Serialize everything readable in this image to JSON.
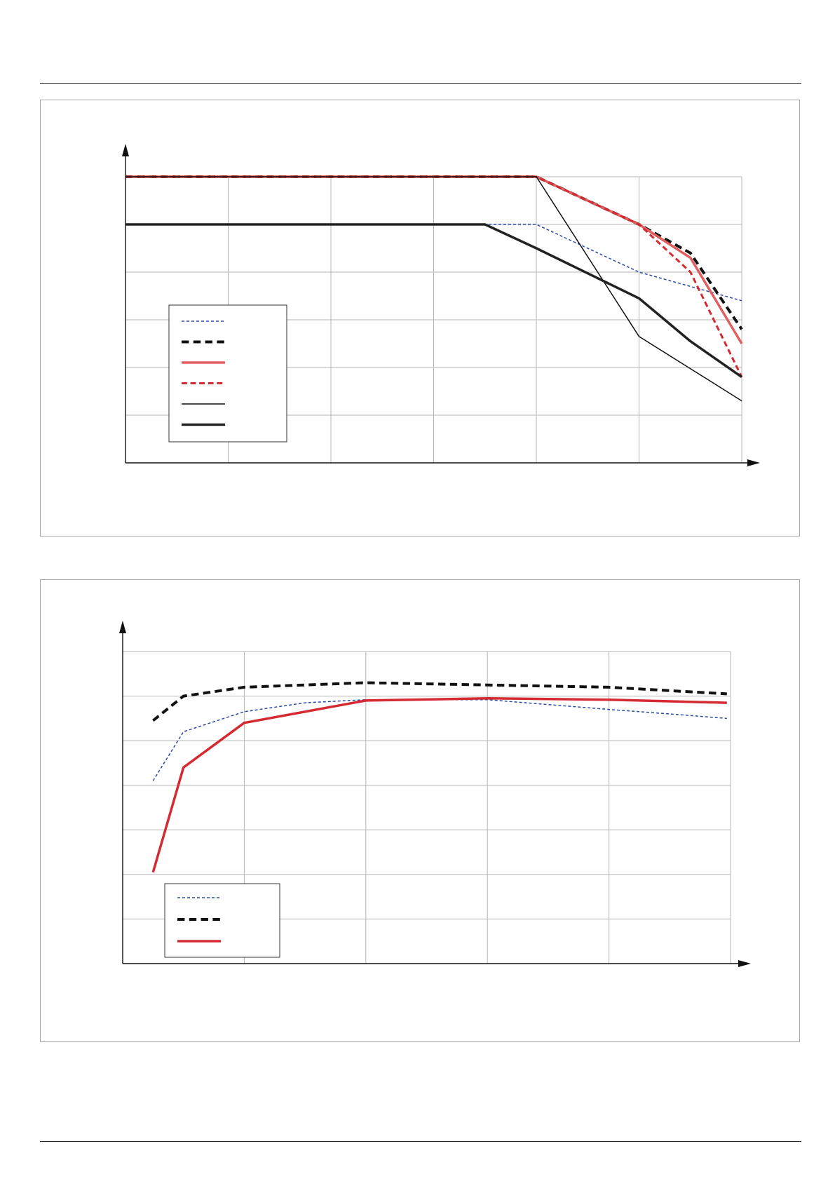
{
  "chart_data": [
    {
      "type": "line",
      "xlim": [
        0,
        6
      ],
      "ylim": [
        0,
        6
      ],
      "grid": true,
      "legend": "lower-left",
      "x": [
        0,
        1,
        2,
        3,
        3.5,
        4,
        5,
        5.5,
        6
      ],
      "series": [
        {
          "style": "dotted",
          "color": "#2b4aa8",
          "width": 1.5,
          "points": [
            [
              0,
              5
            ],
            [
              3.5,
              5
            ],
            [
              4,
              5
            ],
            [
              5,
              4
            ],
            [
              5.5,
              3.7
            ],
            [
              6,
              3.4
            ]
          ]
        },
        {
          "style": "dashed",
          "color": "#111111",
          "width": 4,
          "points": [
            [
              0,
              6
            ],
            [
              4,
              6
            ],
            [
              5,
              5
            ],
            [
              5.5,
              4.4
            ],
            [
              6,
              2.8
            ]
          ]
        },
        {
          "style": "solid",
          "color": "#e06060",
          "width": 3.5,
          "points": [
            [
              0,
              6
            ],
            [
              4,
              6
            ],
            [
              5,
              5
            ],
            [
              5.5,
              4.3
            ],
            [
              6,
              2.5
            ]
          ]
        },
        {
          "style": "dashed",
          "color": "#d42a32",
          "width": 3,
          "points": [
            [
              0,
              6
            ],
            [
              4,
              6
            ],
            [
              5,
              5
            ],
            [
              5.5,
              4
            ],
            [
              6,
              1.8
            ]
          ]
        },
        {
          "style": "solid",
          "color": "#111111",
          "width": 1.5,
          "points": [
            [
              0,
              6
            ],
            [
              4,
              6
            ],
            [
              5,
              2.65
            ],
            [
              6,
              1.3
            ]
          ]
        },
        {
          "style": "solid",
          "color": "#222222",
          "width": 3.5,
          "points": [
            [
              0,
              5
            ],
            [
              3.5,
              5
            ],
            [
              4,
              4.5
            ],
            [
              5,
              3.45
            ],
            [
              5.5,
              2.55
            ],
            [
              6,
              1.8
            ]
          ]
        }
      ]
    },
    {
      "type": "line",
      "xlim": [
        0,
        5
      ],
      "ylim": [
        0,
        7
      ],
      "grid": true,
      "legend": "lower-left",
      "series": [
        {
          "style": "dotted",
          "color": "#2b4aa8",
          "width": 1.5,
          "points": [
            [
              0.25,
              4.1
            ],
            [
              0.5,
              5.2
            ],
            [
              1,
              5.65
            ],
            [
              1.5,
              5.85
            ],
            [
              2,
              5.92
            ],
            [
              3,
              5.92
            ],
            [
              4,
              5.7
            ],
            [
              4.5,
              5.6
            ],
            [
              4.97,
              5.5
            ]
          ]
        },
        {
          "style": "dashed",
          "color": "#111111",
          "width": 4,
          "points": [
            [
              0.25,
              5.45
            ],
            [
              0.5,
              6.0
            ],
            [
              1,
              6.2
            ],
            [
              2,
              6.3
            ],
            [
              3,
              6.25
            ],
            [
              4,
              6.2
            ],
            [
              4.97,
              6.05
            ]
          ]
        },
        {
          "style": "solid",
          "color": "#d42a32",
          "width": 3.5,
          "points": [
            [
              0.25,
              2.05
            ],
            [
              0.5,
              4.4
            ],
            [
              1,
              5.4
            ],
            [
              2,
              5.9
            ],
            [
              3,
              5.95
            ],
            [
              4,
              5.92
            ],
            [
              4.97,
              5.85
            ]
          ]
        }
      ]
    }
  ]
}
